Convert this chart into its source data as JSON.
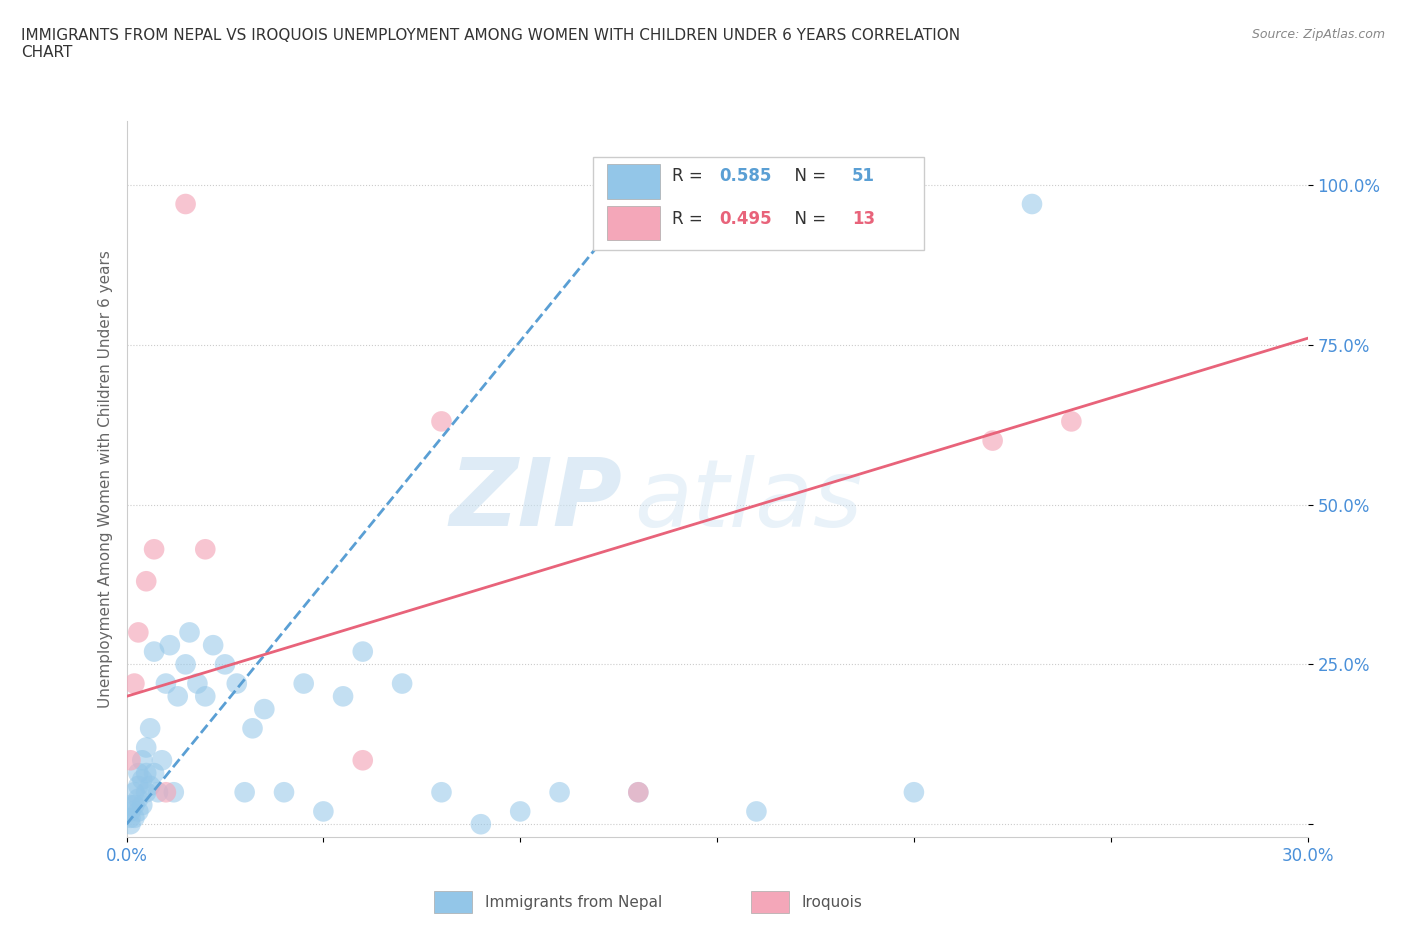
{
  "title": "IMMIGRANTS FROM NEPAL VS IROQUOIS UNEMPLOYMENT AMONG WOMEN WITH CHILDREN UNDER 6 YEARS CORRELATION\nCHART",
  "source_text": "Source: ZipAtlas.com",
  "ylabel": "Unemployment Among Women with Children Under 6 years",
  "watermark_zip": "ZIP",
  "watermark_atlas": "atlas",
  "xlim": [
    0.0,
    0.3
  ],
  "ylim": [
    -0.02,
    1.1
  ],
  "xticks": [
    0.0,
    0.05,
    0.1,
    0.15,
    0.2,
    0.25,
    0.3
  ],
  "xticklabels": [
    "0.0%",
    "",
    "",
    "",
    "",
    "",
    "30.0%"
  ],
  "yticks": [
    0.0,
    0.25,
    0.5,
    0.75,
    1.0
  ],
  "yticklabels": [
    "",
    "25.0%",
    "50.0%",
    "75.0%",
    "100.0%"
  ],
  "nepal_R": 0.585,
  "nepal_N": 51,
  "iroquois_R": 0.495,
  "iroquois_N": 13,
  "nepal_color": "#93C6E8",
  "iroquois_color": "#F4A7B9",
  "nepal_line_color": "#5A9FD4",
  "iroquois_line_color": "#E8637A",
  "legend_label_nepal": "Immigrants from Nepal",
  "legend_label_iroquois": "Iroquois",
  "nepal_x": [
    0.001,
    0.001,
    0.001,
    0.001,
    0.002,
    0.002,
    0.002,
    0.003,
    0.003,
    0.003,
    0.003,
    0.004,
    0.004,
    0.004,
    0.005,
    0.005,
    0.005,
    0.006,
    0.006,
    0.007,
    0.007,
    0.008,
    0.009,
    0.01,
    0.011,
    0.012,
    0.013,
    0.015,
    0.016,
    0.018,
    0.02,
    0.022,
    0.025,
    0.028,
    0.03,
    0.032,
    0.035,
    0.04,
    0.045,
    0.05,
    0.055,
    0.06,
    0.07,
    0.08,
    0.09,
    0.1,
    0.11,
    0.13,
    0.16,
    0.2,
    0.23
  ],
  "nepal_y": [
    0.0,
    0.01,
    0.02,
    0.03,
    0.01,
    0.03,
    0.05,
    0.02,
    0.04,
    0.06,
    0.08,
    0.03,
    0.07,
    0.1,
    0.05,
    0.08,
    0.12,
    0.06,
    0.15,
    0.08,
    0.27,
    0.05,
    0.1,
    0.22,
    0.28,
    0.05,
    0.2,
    0.25,
    0.3,
    0.22,
    0.2,
    0.28,
    0.25,
    0.22,
    0.05,
    0.15,
    0.18,
    0.05,
    0.22,
    0.02,
    0.2,
    0.27,
    0.22,
    0.05,
    0.0,
    0.02,
    0.05,
    0.05,
    0.02,
    0.05,
    0.97
  ],
  "iroquois_x": [
    0.001,
    0.002,
    0.003,
    0.005,
    0.007,
    0.01,
    0.015,
    0.02,
    0.06,
    0.08,
    0.13,
    0.22,
    0.24
  ],
  "iroquois_y": [
    0.1,
    0.22,
    0.3,
    0.38,
    0.43,
    0.05,
    0.97,
    0.43,
    0.1,
    0.63,
    0.05,
    0.6,
    0.63
  ],
  "nepal_trend_x": [
    0.0,
    0.135
  ],
  "nepal_trend_y": [
    0.0,
    1.02
  ],
  "iroquois_trend_x": [
    0.0,
    0.3
  ],
  "iroquois_trend_y": [
    0.2,
    0.76
  ]
}
